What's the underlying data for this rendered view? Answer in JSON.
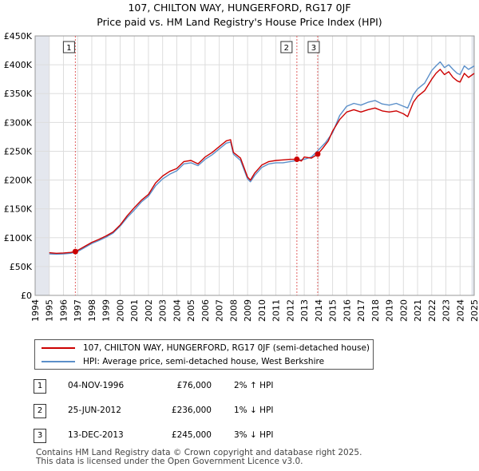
{
  "header": {
    "title": "107, CHILTON WAY, HUNGERFORD, RG17 0JF",
    "subtitle": "Price paid vs. HM Land Registry's House Price Index (HPI)"
  },
  "colors": {
    "property": "#cc0000",
    "hpi": "#5b8fc9",
    "shade": "#e4e7ee",
    "grid": "#dddddd",
    "marker_line": "#e06060"
  },
  "chart_data": {
    "type": "line",
    "title": "107, CHILTON WAY, HUNGERFORD, RG17 0JF",
    "subtitle": "Price paid vs. HM Land Registry's House Price Index (HPI)",
    "xlabel": "",
    "ylabel": "",
    "xlim": [
      1994,
      2025
    ],
    "ylim": [
      0,
      450000
    ],
    "grid": true,
    "x_ticks": [
      "1994",
      "1995",
      "1996",
      "1997",
      "1998",
      "1999",
      "2000",
      "2001",
      "2002",
      "2003",
      "2004",
      "2005",
      "2006",
      "2007",
      "2008",
      "2009",
      "2010",
      "2011",
      "2012",
      "2013",
      "2014",
      "2015",
      "2016",
      "2017",
      "2018",
      "2019",
      "2020",
      "2021",
      "2022",
      "2023",
      "2024",
      "2025"
    ],
    "y_ticks": [
      {
        "label": "£0",
        "value": 0
      },
      {
        "label": "£50K",
        "value": 50000
      },
      {
        "label": "£100K",
        "value": 100000
      },
      {
        "label": "£150K",
        "value": 150000
      },
      {
        "label": "£200K",
        "value": 200000
      },
      {
        "label": "£250K",
        "value": 250000
      },
      {
        "label": "£300K",
        "value": 300000
      },
      {
        "label": "£350K",
        "value": 350000
      },
      {
        "label": "£400K",
        "value": 400000
      },
      {
        "label": "£450K",
        "value": 450000
      }
    ],
    "shaded_ranges": [
      [
        1994,
        1995
      ],
      [
        2024.8,
        2025
      ]
    ],
    "series": [
      {
        "name": "107, CHILTON WAY, HUNGERFORD, RG17 0JF (semi-detached house)",
        "color": "#cc0000",
        "x": [
          1995.0,
          1995.5,
          1996.0,
          1996.5,
          1996.84,
          1997.0,
          1997.5,
          1998.0,
          1998.5,
          1999.0,
          1999.5,
          2000.0,
          2000.5,
          2001.0,
          2001.5,
          2002.0,
          2002.5,
          2003.0,
          2003.5,
          2004.0,
          2004.5,
          2005.0,
          2005.5,
          2006.0,
          2006.5,
          2007.0,
          2007.5,
          2007.8,
          2008.0,
          2008.5,
          2009.0,
          2009.2,
          2009.5,
          2010.0,
          2010.5,
          2011.0,
          2011.5,
          2012.0,
          2012.48,
          2012.8,
          2013.0,
          2013.5,
          2013.95,
          2014.3,
          2014.7,
          2015.0,
          2015.5,
          2016.0,
          2016.5,
          2017.0,
          2017.5,
          2018.0,
          2018.5,
          2019.0,
          2019.5,
          2020.0,
          2020.3,
          2020.7,
          2021.0,
          2021.5,
          2022.0,
          2022.3,
          2022.6,
          2022.9,
          2023.2,
          2023.5,
          2023.8,
          2024.0,
          2024.3,
          2024.6,
          2025.0
        ],
        "values": [
          74000,
          73000,
          73500,
          74500,
          76000,
          78000,
          85000,
          92000,
          97000,
          103000,
          110000,
          122000,
          138000,
          152000,
          165000,
          175000,
          195000,
          207000,
          215000,
          220000,
          232000,
          234000,
          228000,
          240000,
          248000,
          258000,
          268000,
          270000,
          248000,
          238000,
          205000,
          200000,
          212000,
          226000,
          232000,
          234000,
          235000,
          236000,
          236000,
          233000,
          240000,
          238000,
          245000,
          255000,
          268000,
          285000,
          305000,
          318000,
          322000,
          318000,
          322000,
          325000,
          320000,
          318000,
          320000,
          315000,
          310000,
          335000,
          345000,
          355000,
          375000,
          385000,
          392000,
          383000,
          388000,
          378000,
          372000,
          370000,
          385000,
          378000,
          385000
        ]
      },
      {
        "name": "HPI: Average price, semi-detached house, West Berkshire",
        "color": "#5b8fc9",
        "x": [
          1995.0,
          1995.5,
          1996.0,
          1996.5,
          1997.0,
          1997.5,
          1998.0,
          1998.5,
          1999.0,
          1999.5,
          2000.0,
          2000.5,
          2001.0,
          2001.5,
          2002.0,
          2002.5,
          2003.0,
          2003.5,
          2004.0,
          2004.5,
          2005.0,
          2005.5,
          2006.0,
          2006.5,
          2007.0,
          2007.5,
          2007.8,
          2008.0,
          2008.5,
          2009.0,
          2009.2,
          2009.5,
          2010.0,
          2010.5,
          2011.0,
          2011.5,
          2012.0,
          2012.5,
          2013.0,
          2013.5,
          2014.0,
          2014.5,
          2015.0,
          2015.5,
          2016.0,
          2016.5,
          2017.0,
          2017.5,
          2018.0,
          2018.5,
          2019.0,
          2019.5,
          2020.0,
          2020.3,
          2020.7,
          2021.0,
          2021.5,
          2022.0,
          2022.3,
          2022.6,
          2022.9,
          2023.2,
          2023.5,
          2023.8,
          2024.0,
          2024.3,
          2024.6,
          2025.0
        ],
        "values": [
          72000,
          71500,
          72000,
          73000,
          76000,
          83000,
          90000,
          95000,
          101000,
          108000,
          120000,
          135000,
          148000,
          162000,
          172000,
          190000,
          202000,
          210000,
          216000,
          228000,
          230000,
          225000,
          236000,
          244000,
          254000,
          264000,
          266000,
          245000,
          234000,
          202000,
          197000,
          208000,
          222000,
          228000,
          230000,
          230000,
          232000,
          234000,
          236000,
          240000,
          252000,
          265000,
          282000,
          312000,
          328000,
          333000,
          330000,
          335000,
          338000,
          332000,
          330000,
          333000,
          328000,
          325000,
          348000,
          358000,
          368000,
          390000,
          398000,
          405000,
          395000,
          400000,
          392000,
          385000,
          383000,
          398000,
          392000,
          398000
        ]
      }
    ],
    "sales": [
      {
        "label": "1",
        "x": 1996.84,
        "value": 76000
      },
      {
        "label": "2",
        "x": 2012.48,
        "value": 236000
      },
      {
        "label": "3",
        "x": 2013.95,
        "value": 245000
      }
    ]
  },
  "legend": {
    "property_label": "107, CHILTON WAY, HUNGERFORD, RG17 0JF (semi-detached house)",
    "hpi_label": "HPI: Average price, semi-detached house, West Berkshire"
  },
  "transactions": [
    {
      "num": "1",
      "date": "04-NOV-1996",
      "price": "£76,000",
      "hpi": "2% ↑ HPI"
    },
    {
      "num": "2",
      "date": "25-JUN-2012",
      "price": "£236,000",
      "hpi": "1% ↓ HPI"
    },
    {
      "num": "3",
      "date": "13-DEC-2013",
      "price": "£245,000",
      "hpi": "3% ↓ HPI"
    }
  ],
  "footer": {
    "line1": "Contains HM Land Registry data © Crown copyright and database right 2025.",
    "line2": "This data is licensed under the Open Government Licence v3.0."
  }
}
